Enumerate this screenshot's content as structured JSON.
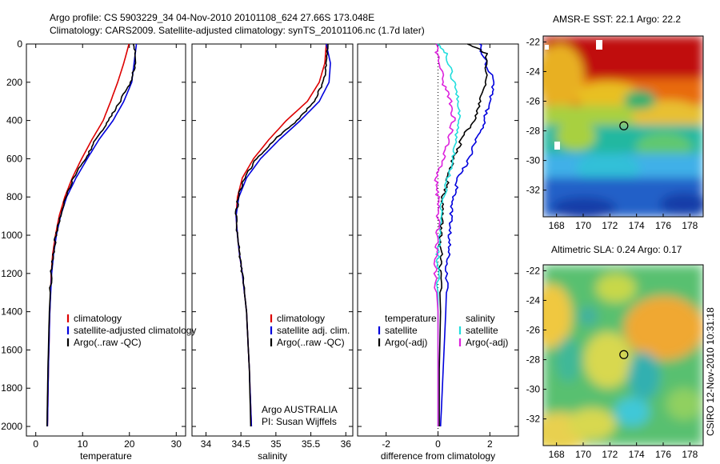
{
  "header": {
    "line1": "Argo profile: CS 5903229_34 04-Nov-2010 20101108_624 27.66S 173.048E",
    "line2": "Climatology: CARS2009. Satellite-adjusted climatology: synTS_20101106.nc (1.7d later)"
  },
  "colors": {
    "climatology": "#dd0000",
    "satellite": "#0000dd",
    "argo": "#000000",
    "satellite_diff_s": "#22dddd",
    "argo_diff_s": "#dd22dd"
  },
  "credits": {
    "program": "Argo AUSTRALIA",
    "pi": "PI: Susan Wijffels",
    "stamp": "CSIRO 12-Nov-2010 10:31:18"
  },
  "chart_data": [
    {
      "type": "line",
      "panel": "temperature",
      "xlabel": "temperature",
      "ylabel": "",
      "xlim": [
        -2,
        32
      ],
      "ylim": [
        2050,
        0
      ],
      "y_reversed": true,
      "xticks": [
        "0",
        "10",
        "20",
        "30"
      ],
      "yticks": [
        "0",
        "200",
        "400",
        "600",
        "800",
        "1000",
        "1200",
        "1400",
        "1600",
        "1800",
        "2000"
      ],
      "legend": [
        "climatology",
        "satellite-adjusted climatology",
        "Argo(..raw -QC)"
      ],
      "series": [
        {
          "name": "climatology",
          "color": "#dd0000",
          "x": [
            19.9,
            18.8,
            17.5,
            16.0,
            14.4,
            12.0,
            9.8,
            7.8,
            6.2,
            5.0,
            4.2,
            3.6,
            3.3,
            3.0,
            2.7,
            2.5
          ],
          "y": [
            0,
            100,
            200,
            300,
            400,
            500,
            600,
            700,
            800,
            900,
            1000,
            1100,
            1200,
            1400,
            1700,
            2000
          ]
        },
        {
          "name": "satellite-adjusted climatology",
          "color": "#0000dd",
          "x": [
            21.5,
            21.0,
            20.5,
            18.8,
            16.5,
            13.5,
            11.0,
            8.6,
            6.6,
            5.3,
            4.4,
            3.8,
            3.4,
            3.0,
            2.7,
            2.5
          ],
          "y": [
            0,
            100,
            200,
            300,
            400,
            500,
            600,
            700,
            800,
            900,
            1000,
            1100,
            1200,
            1400,
            1700,
            2000
          ]
        },
        {
          "name": "Argo(..raw -QC)",
          "color": "#000000",
          "x": [
            21.0,
            21.3,
            20.2,
            18.0,
            15.6,
            12.8,
            10.6,
            8.0,
            6.4,
            5.2,
            4.3,
            3.7,
            3.3,
            2.9,
            2.6,
            2.4
          ],
          "y": [
            0,
            100,
            200,
            300,
            400,
            500,
            600,
            700,
            800,
            900,
            1000,
            1100,
            1200,
            1400,
            1700,
            2000
          ]
        }
      ]
    },
    {
      "type": "line",
      "panel": "salinity",
      "xlabel": "salinity",
      "ylabel": "",
      "xlim": [
        33.8,
        36.1
      ],
      "ylim": [
        2050,
        0
      ],
      "y_reversed": true,
      "xticks": [
        "34",
        "34.5",
        "35",
        "35.5",
        "36"
      ],
      "legend": [
        "climatology",
        "satellite adj. clim.",
        "Argo(..raw -QC)"
      ],
      "series": [
        {
          "name": "climatology",
          "color": "#dd0000",
          "x": [
            35.72,
            35.7,
            35.62,
            35.45,
            35.15,
            34.9,
            34.68,
            34.52,
            34.45,
            34.43,
            34.45,
            34.48,
            34.52,
            34.58,
            34.62,
            34.65
          ],
          "y": [
            0,
            100,
            200,
            300,
            400,
            500,
            600,
            700,
            800,
            900,
            1000,
            1100,
            1200,
            1400,
            1700,
            2000
          ]
        },
        {
          "name": "satellite adj. clim.",
          "color": "#0000dd",
          "x": [
            35.72,
            35.78,
            35.76,
            35.62,
            35.35,
            35.05,
            34.78,
            34.58,
            34.47,
            34.43,
            34.45,
            34.48,
            34.52,
            34.58,
            34.62,
            34.65
          ],
          "y": [
            0,
            100,
            200,
            300,
            400,
            500,
            600,
            700,
            800,
            900,
            1000,
            1100,
            1200,
            1400,
            1700,
            2000
          ]
        },
        {
          "name": "Argo(..raw -QC)",
          "color": "#000000",
          "x": [
            35.75,
            35.72,
            35.68,
            35.55,
            35.3,
            34.98,
            34.72,
            34.55,
            34.46,
            34.43,
            34.45,
            34.48,
            34.52,
            34.58,
            34.62,
            34.64
          ],
          "y": [
            0,
            100,
            200,
            300,
            400,
            500,
            600,
            700,
            800,
            900,
            1000,
            1100,
            1200,
            1400,
            1700,
            2000
          ]
        }
      ]
    },
    {
      "type": "line",
      "panel": "difference",
      "xlabel": "difference from climatology",
      "ylabel": "",
      "xlim": [
        -3.1,
        3.1
      ],
      "ylim": [
        2050,
        0
      ],
      "y_reversed": true,
      "xticks": [
        "-2",
        "0",
        "2"
      ],
      "legend_left_title": "temperature",
      "legend_right_title": "salinity",
      "legend": [
        "satellite",
        "Argo(-adj)",
        "satellite",
        "Argo(-adj)"
      ],
      "series": [
        {
          "name": "satellite",
          "group": "temperature",
          "color": "#0000dd",
          "x": [
            1.6,
            1.7,
            2.2,
            2.0,
            1.8,
            1.5,
            1.2,
            0.8,
            0.6,
            0.5,
            0.45,
            0.4,
            0.35,
            0.3,
            0.2,
            0.1
          ],
          "y": [
            0,
            50,
            200,
            300,
            400,
            500,
            600,
            700,
            800,
            900,
            1000,
            1100,
            1200,
            1400,
            1700,
            2000
          ]
        },
        {
          "name": "Argo(-adj)",
          "group": "temperature",
          "color": "#000000",
          "x": [
            1.2,
            1.9,
            1.8,
            1.6,
            1.4,
            0.9,
            0.6,
            0.4,
            0.2,
            0.15,
            0.1,
            0.1,
            0.05,
            0.1,
            0.05,
            0.05
          ],
          "y": [
            0,
            50,
            200,
            300,
            400,
            500,
            600,
            700,
            800,
            900,
            1000,
            1100,
            1200,
            1400,
            1700,
            2000
          ]
        },
        {
          "name": "satellite",
          "group": "salinity",
          "color": "#22dddd",
          "x": [
            0.0,
            0.3,
            0.6,
            0.8,
            0.8,
            0.7,
            0.6,
            0.4,
            0.2,
            0.1,
            0.05,
            0.0,
            0.0,
            0.0,
            0.0,
            0.0
          ],
          "y": [
            0,
            50,
            200,
            300,
            400,
            500,
            600,
            700,
            800,
            900,
            1000,
            1100,
            1200,
            1400,
            1700,
            2000
          ]
        },
        {
          "name": "Argo(-adj)",
          "group": "salinity",
          "color": "#dd22dd",
          "x": [
            -0.1,
            -0.05,
            0.2,
            0.5,
            0.6,
            0.4,
            0.2,
            -0.1,
            0.0,
            0.0,
            0.0,
            -0.05,
            -0.1,
            0.0,
            0.0,
            0.0
          ],
          "y": [
            0,
            50,
            200,
            300,
            400,
            500,
            600,
            700,
            800,
            900,
            1000,
            1100,
            1200,
            1400,
            1700,
            2000
          ]
        }
      ]
    },
    {
      "type": "heatmap",
      "panel": "sst_map",
      "title": "AMSR-E SST: 22.1 Argo: 22.2",
      "xlim": [
        167,
        179
      ],
      "ylim": [
        -33.8,
        -21.6
      ],
      "xticks": [
        "168",
        "170",
        "172",
        "174",
        "176",
        "178"
      ],
      "yticks": [
        "-22",
        "-24",
        "-26",
        "-28",
        "-30",
        "-32"
      ],
      "float_position": {
        "lon": 173.048,
        "lat": -27.66
      }
    },
    {
      "type": "heatmap",
      "panel": "sla_map",
      "title": "Altimetric SLA: 0.24 Argo: 0.17",
      "xlim": [
        167,
        179
      ],
      "ylim": [
        -33.8,
        -21.6
      ],
      "xticks": [
        "168",
        "170",
        "172",
        "174",
        "176",
        "178"
      ],
      "yticks": [
        "-22",
        "-24",
        "-26",
        "-28",
        "-30",
        "-32"
      ],
      "float_position": {
        "lon": 173.048,
        "lat": -27.66
      }
    }
  ]
}
